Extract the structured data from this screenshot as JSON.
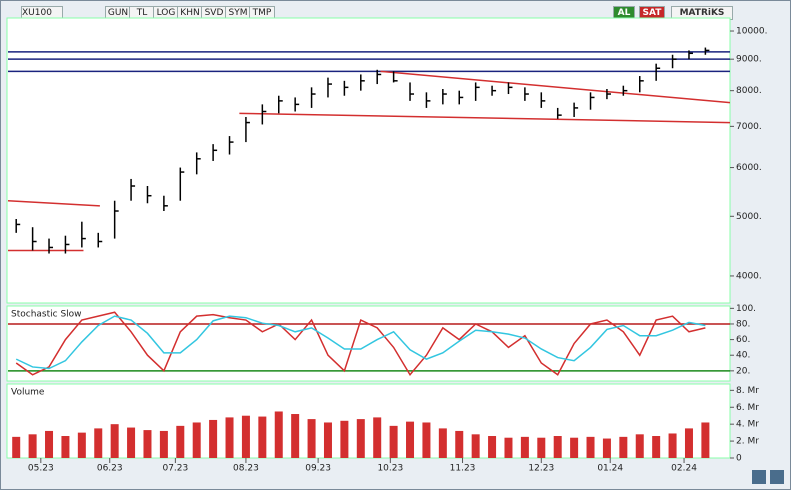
{
  "toolbar": {
    "symbol": "XU100",
    "buttons": [
      "GUN",
      "TL",
      "LOG",
      "KHN",
      "SVD",
      "SYM",
      "TMP"
    ],
    "buy": "AL",
    "sell": "SAT",
    "brand": "MATRiKS"
  },
  "chart_data": [
    {
      "type": "ohlc",
      "color": "#000000",
      "log_scale": true,
      "high": [
        4950,
        4800,
        4600,
        4650,
        4900,
        4700,
        5300,
        5750,
        5600,
        5400,
        6000,
        6350,
        6550,
        6750,
        7250,
        7600,
        7850,
        7800,
        8100,
        8400,
        8300,
        8500,
        8650,
        8600,
        8250,
        7950,
        8050,
        8000,
        8250,
        8150,
        8250,
        8100,
        7950,
        7500,
        7650,
        7950,
        8050,
        8150,
        8450,
        8850,
        9150,
        9300,
        9400
      ],
      "low": [
        4700,
        4400,
        4350,
        4350,
        4450,
        4450,
        4600,
        5300,
        5250,
        5100,
        5300,
        5850,
        6150,
        6300,
        6600,
        7050,
        7350,
        7400,
        7500,
        7800,
        7850,
        8000,
        8200,
        8250,
        7700,
        7500,
        7600,
        7600,
        7700,
        7850,
        7900,
        7700,
        7500,
        7200,
        7250,
        7450,
        7750,
        7850,
        7950,
        8300,
        8700,
        9000,
        9150
      ],
      "close": [
        4850,
        4550,
        4450,
        4500,
        4600,
        4550,
        5100,
        5600,
        5400,
        5200,
        5900,
        6200,
        6400,
        6600,
        7100,
        7400,
        7700,
        7600,
        7900,
        8200,
        8100,
        8300,
        8500,
        8300,
        7900,
        7700,
        7900,
        7800,
        8100,
        8000,
        8100,
        7900,
        7700,
        7300,
        7500,
        7800,
        7900,
        8000,
        8300,
        8700,
        9000,
        9200,
        9300
      ],
      "ylim": [
        3615,
        10499
      ],
      "yticks": [
        {
          "value": 4000,
          "label": "4000."
        },
        {
          "value": 5000,
          "label": "5000."
        },
        {
          "value": 6000,
          "label": "6000."
        },
        {
          "value": 7000,
          "label": "7000."
        },
        {
          "value": 8000,
          "label": "8000."
        },
        {
          "value": 9000,
          "label": "9000."
        },
        {
          "value": 10000,
          "label": "10000."
        }
      ],
      "hlines": [
        9250,
        9000,
        8600
      ],
      "hline_color": "#1a237e",
      "trendlines": [
        {
          "x": [
            -0.5,
            5.1
          ],
          "y": [
            5300,
            5200
          ]
        },
        {
          "x": [
            -0.5,
            4.1
          ],
          "y": [
            4400,
            4400
          ]
        },
        {
          "x": [
            22.2,
            43.5
          ],
          "y": [
            8600,
            7650
          ]
        },
        {
          "x": [
            13.6,
            43.5
          ],
          "y": [
            7350,
            7100
          ]
        }
      ],
      "trend_color": "#d32f2f"
    },
    {
      "type": "line",
      "title": "Stochastic Slow",
      "series": [
        {
          "color": "#d32f2f",
          "values": [
            30,
            15,
            25,
            60,
            85,
            90,
            95,
            70,
            40,
            20,
            70,
            90,
            92,
            88,
            85,
            70,
            80,
            60,
            85,
            40,
            20,
            85,
            75,
            50,
            15,
            40,
            75,
            60,
            80,
            70,
            50,
            65,
            30,
            15,
            55,
            80,
            85,
            70,
            40,
            85,
            90,
            70,
            75
          ]
        },
        {
          "color": "#33c6e0",
          "values": [
            35,
            25,
            23,
            33,
            57,
            78,
            90,
            85,
            68,
            43,
            43,
            60,
            84,
            90,
            88,
            81,
            78,
            70,
            75,
            62,
            48,
            48,
            60,
            70,
            47,
            35,
            43,
            58,
            72,
            70,
            67,
            62,
            48,
            37,
            33,
            50,
            73,
            78,
            65,
            65,
            72,
            82,
            78
          ]
        }
      ],
      "ylim": [
        7,
        103
      ],
      "yticks": [
        {
          "value": 20,
          "label": "20."
        },
        {
          "value": 40,
          "label": "40."
        },
        {
          "value": 60,
          "label": "60."
        },
        {
          "value": 80,
          "label": "80."
        },
        {
          "value": 100,
          "label": "100."
        }
      ],
      "hlines": [
        80,
        20
      ],
      "hline_colors": [
        "#b71c1c",
        "#1b8a1b"
      ]
    },
    {
      "type": "bar",
      "title": "Volume",
      "color": "#d32f2f",
      "values": [
        2.5,
        2.8,
        3.2,
        2.6,
        3,
        3.5,
        4,
        3.6,
        3.3,
        3.2,
        3.8,
        4.2,
        4.5,
        4.8,
        5,
        4.9,
        5.5,
        5.2,
        4.6,
        4.2,
        4.4,
        4.6,
        4.8,
        3.8,
        4.3,
        4.2,
        3.5,
        3.2,
        2.8,
        2.6,
        2.4,
        2.5,
        2.4,
        2.6,
        2.4,
        2.5,
        2.3,
        2.5,
        2.8,
        2.6,
        2.9,
        3.5,
        4.2
      ],
      "ylim": [
        0,
        8.75
      ],
      "yticks": [
        0,
        {
          "value": 2,
          "label": "2. Mr"
        },
        {
          "value": 4,
          "label": "4. Mr"
        },
        {
          "value": 6,
          "label": "6. Mr"
        },
        {
          "value": 8,
          "label": "8. Mr"
        }
      ],
      "xlim": [
        -0.5,
        43.5
      ],
      "xticks": [
        {
          "value": 1.5,
          "label": "05.23"
        },
        {
          "value": 5.7,
          "label": "06.23"
        },
        {
          "value": 9.7,
          "label": "07.23"
        },
        {
          "value": 14,
          "label": "08.23"
        },
        {
          "value": 18.4,
          "label": "09.23"
        },
        {
          "value": 22.8,
          "label": "10.23"
        },
        {
          "value": 27.2,
          "label": "11.23"
        },
        {
          "value": 32,
          "label": "12.23"
        },
        {
          "value": 36.2,
          "label": "01.24"
        },
        {
          "value": 40.7,
          "label": "02.24"
        }
      ]
    }
  ]
}
